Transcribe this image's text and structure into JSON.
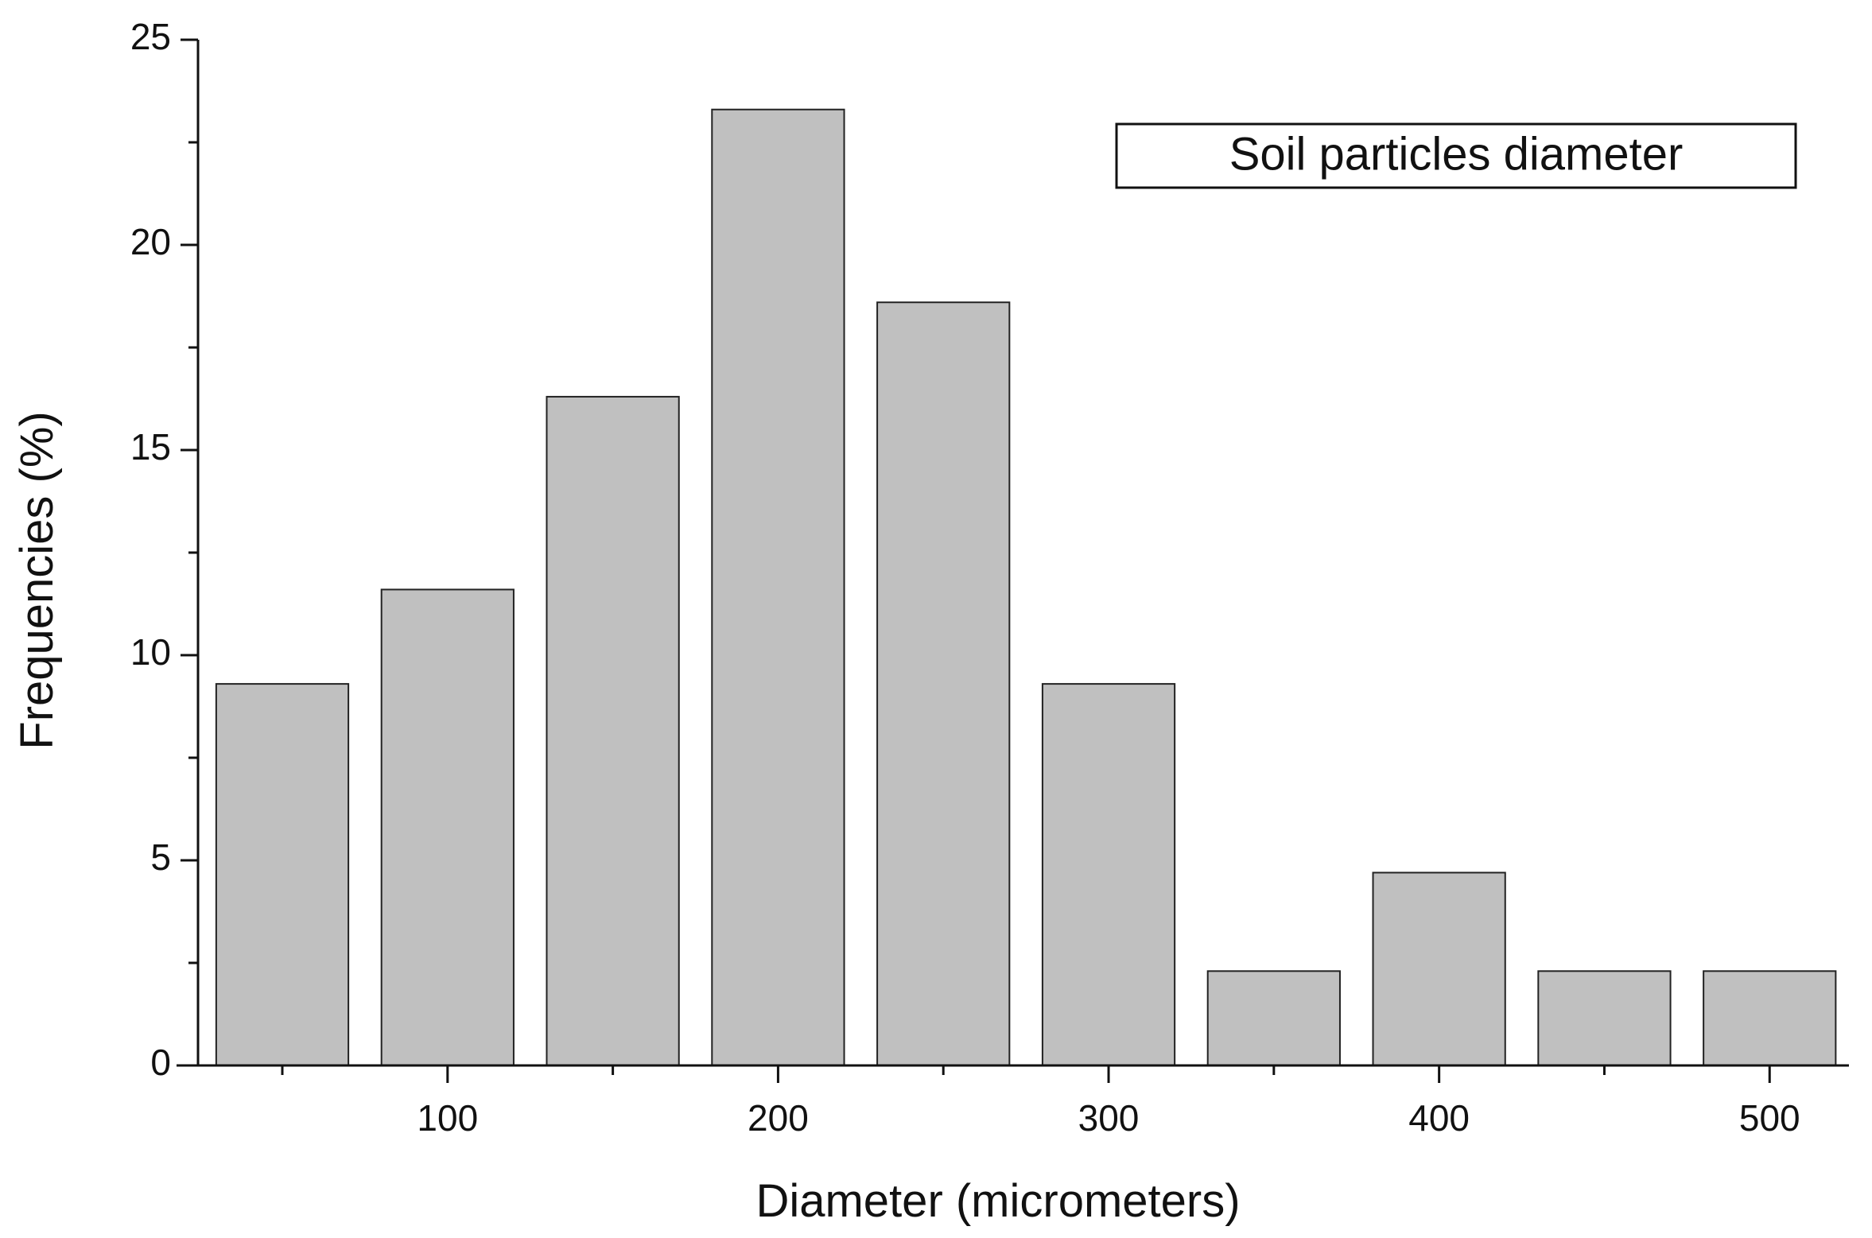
{
  "chart_data": {
    "type": "bar",
    "x": [
      50,
      100,
      150,
      200,
      250,
      300,
      350,
      400,
      450,
      500
    ],
    "series": [
      {
        "name": "Soil particles diameter",
        "color": "#c0c0c0",
        "values": [
          9.3,
          11.6,
          16.3,
          23.3,
          18.6,
          9.3,
          2.3,
          4.7,
          2.3,
          2.3
        ]
      }
    ],
    "xlabel": "Diameter (micrometers)",
    "ylabel": "Frequencies (%)",
    "xlim": [
      18,
      524
    ],
    "xticks": [
      100,
      200,
      300,
      400,
      500
    ],
    "xminor_ticks": [
      50,
      150,
      250,
      350,
      450
    ],
    "ylim": [
      0,
      25
    ],
    "yticks": [
      0,
      5,
      10,
      15,
      20,
      25
    ],
    "yminor_ticks": [
      2.5,
      7.5,
      12.5,
      17.5,
      22.5
    ],
    "legend": "upper right"
  }
}
